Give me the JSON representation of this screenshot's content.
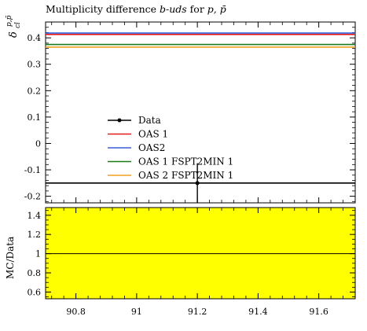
{
  "title": {
    "prefix": "Multiplicity difference ",
    "italic": "b-uds",
    "suffix": " for ",
    "particles": "p, p̄"
  },
  "chart_data": [
    {
      "type": "line",
      "title": "Multiplicity difference b-uds for p, p̄",
      "ylabel": "δ_cl^{p,p̄}",
      "ylabel_main": "δ",
      "ylabel_sup": "p,p̄",
      "ylabel_sub": "cl",
      "xlim": [
        90.7,
        91.72
      ],
      "ylim": [
        -0.225,
        0.46
      ],
      "yticks": [
        -0.2,
        -0.1,
        0,
        0.1,
        0.2,
        0.3,
        0.4
      ],
      "ytick_labels": [
        "-0.2",
        "-0.1",
        "0",
        "0.1",
        "0.2",
        "0.3",
        "0.4"
      ],
      "data_point": {
        "x": 91.2,
        "y": -0.15,
        "yerr": [
          0.075,
          0.075
        ]
      },
      "series": [
        {
          "name": "Data",
          "color": "#000000",
          "marker": "dot",
          "y": -0.15
        },
        {
          "name": "OAS 1",
          "color": "#e41a1c",
          "y": 0.413
        },
        {
          "name": "OAS2",
          "color": "#3a5fd9",
          "y": 0.418
        },
        {
          "name": "OAS 1 FSPT2MIN 1",
          "color": "#1a7a1a",
          "y": 0.375
        },
        {
          "name": "OAS 2 FSPT2MIN 1",
          "color": "#f0a020",
          "y": 0.365
        }
      ],
      "legend_position": "center-left"
    },
    {
      "type": "line",
      "ylabel": "MC/Data",
      "xlim": [
        90.7,
        91.72
      ],
      "ylim": [
        0.53,
        1.48
      ],
      "yticks": [
        0.6,
        0.8,
        1.0,
        1.2,
        1.4
      ],
      "ytick_labels": [
        "0.6",
        "0.8",
        "1",
        "1.2",
        "1.4"
      ],
      "xticks": [
        90.8,
        91.0,
        91.2,
        91.4,
        91.6
      ],
      "xtick_labels": [
        "90.8",
        "91",
        "91.2",
        "91.4",
        "91.6"
      ],
      "band": {
        "color": "#ffff00",
        "range": [
          0.53,
          1.48
        ]
      },
      "reference_line": 1.0
    }
  ]
}
